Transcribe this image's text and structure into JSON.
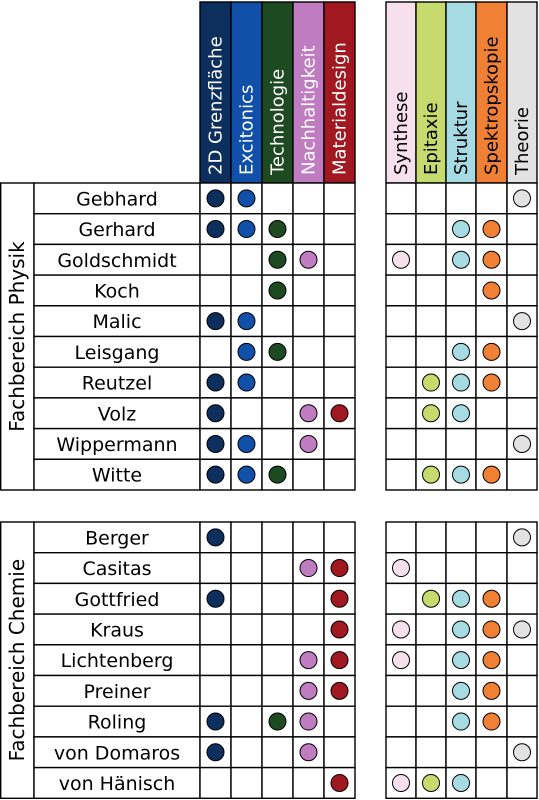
{
  "colors": {
    "2d": "#0c2f5e",
    "excitonics": "#1050a8",
    "technologie": "#1e4a22",
    "nachhaltigkeit": "#c07cc0",
    "materialdesign": "#a11820",
    "synthese": "#f6e0ee",
    "epitaxie": "#c6da6e",
    "struktur": "#a6dbe3",
    "spektroskopie": "#f08033",
    "theorie": "#e2e2e2"
  },
  "left_columns": [
    {
      "key": "2d",
      "label": "2D Grenzfläche",
      "text_color": "#ffffff"
    },
    {
      "key": "excitonics",
      "label": "Excitonics",
      "text_color": "#ffffff"
    },
    {
      "key": "technologie",
      "label": "Technologie",
      "text_color": "#ffffff"
    },
    {
      "key": "nachhaltigkeit",
      "label": "Nachhaltigkeit",
      "text_color": "#ffffff"
    },
    {
      "key": "materialdesign",
      "label": "Materialdesign",
      "text_color": "#ffffff"
    }
  ],
  "right_columns": [
    {
      "key": "synthese",
      "label": "Synthese",
      "text_color": "#000000"
    },
    {
      "key": "epitaxie",
      "label": "Epitaxie",
      "text_color": "#000000"
    },
    {
      "key": "struktur",
      "label": "Struktur",
      "text_color": "#000000"
    },
    {
      "key": "spektroskopie",
      "label": "Spektropskopie",
      "text_color": "#000000"
    },
    {
      "key": "theorie",
      "label": "Theorie",
      "text_color": "#000000"
    }
  ],
  "groups": [
    {
      "label": "Fachbereich Physik",
      "rows": [
        {
          "name": "Gebhard",
          "left": [
            1,
            1,
            0,
            0,
            0
          ],
          "right": [
            0,
            0,
            0,
            0,
            1
          ]
        },
        {
          "name": "Gerhard",
          "left": [
            1,
            1,
            1,
            0,
            0
          ],
          "right": [
            0,
            0,
            1,
            1,
            0
          ]
        },
        {
          "name": "Goldschmidt",
          "left": [
            0,
            0,
            1,
            1,
            0
          ],
          "right": [
            1,
            0,
            1,
            1,
            0
          ]
        },
        {
          "name": "Koch",
          "left": [
            0,
            0,
            1,
            0,
            0
          ],
          "right": [
            0,
            0,
            0,
            1,
            0
          ]
        },
        {
          "name": "Malic",
          "left": [
            1,
            1,
            0,
            0,
            0
          ],
          "right": [
            0,
            0,
            0,
            0,
            1
          ]
        },
        {
          "name": "Leisgang",
          "left": [
            0,
            1,
            1,
            0,
            0
          ],
          "right": [
            0,
            0,
            1,
            1,
            0
          ]
        },
        {
          "name": "Reutzel",
          "left": [
            1,
            1,
            0,
            0,
            0
          ],
          "right": [
            0,
            1,
            1,
            1,
            0
          ]
        },
        {
          "name": "Volz",
          "left": [
            1,
            0,
            0,
            1,
            1
          ],
          "right": [
            0,
            1,
            1,
            0,
            0
          ]
        },
        {
          "name": "Wippermann",
          "left": [
            1,
            1,
            0,
            1,
            0
          ],
          "right": [
            0,
            0,
            0,
            0,
            1
          ]
        },
        {
          "name": "Witte",
          "left": [
            1,
            1,
            1,
            0,
            0
          ],
          "right": [
            0,
            1,
            1,
            1,
            0
          ]
        }
      ]
    },
    {
      "label": "Fachbereich Chemie",
      "rows": [
        {
          "name": "Berger",
          "left": [
            1,
            0,
            0,
            0,
            0
          ],
          "right": [
            0,
            0,
            0,
            0,
            1
          ]
        },
        {
          "name": "Casitas",
          "left": [
            0,
            0,
            0,
            1,
            1
          ],
          "right": [
            1,
            0,
            0,
            0,
            0
          ]
        },
        {
          "name": "Gottfried",
          "left": [
            1,
            0,
            0,
            0,
            1
          ],
          "right": [
            0,
            1,
            1,
            1,
            0
          ]
        },
        {
          "name": "Kraus",
          "left": [
            0,
            0,
            0,
            0,
            1
          ],
          "right": [
            1,
            0,
            1,
            1,
            1
          ]
        },
        {
          "name": "Lichtenberg",
          "left": [
            0,
            0,
            0,
            1,
            1
          ],
          "right": [
            1,
            0,
            1,
            1,
            0
          ]
        },
        {
          "name": "Preiner",
          "left": [
            0,
            0,
            0,
            1,
            1
          ],
          "right": [
            0,
            0,
            1,
            1,
            0
          ]
        },
        {
          "name": "Roling",
          "left": [
            1,
            0,
            1,
            1,
            0
          ],
          "right": [
            0,
            0,
            1,
            1,
            0
          ]
        },
        {
          "name": "von Domaros",
          "left": [
            1,
            0,
            0,
            1,
            0
          ],
          "right": [
            0,
            0,
            0,
            0,
            1
          ]
        },
        {
          "name": "von Hänisch",
          "left": [
            0,
            0,
            0,
            0,
            1
          ],
          "right": [
            1,
            1,
            1,
            0,
            0
          ]
        }
      ]
    }
  ]
}
